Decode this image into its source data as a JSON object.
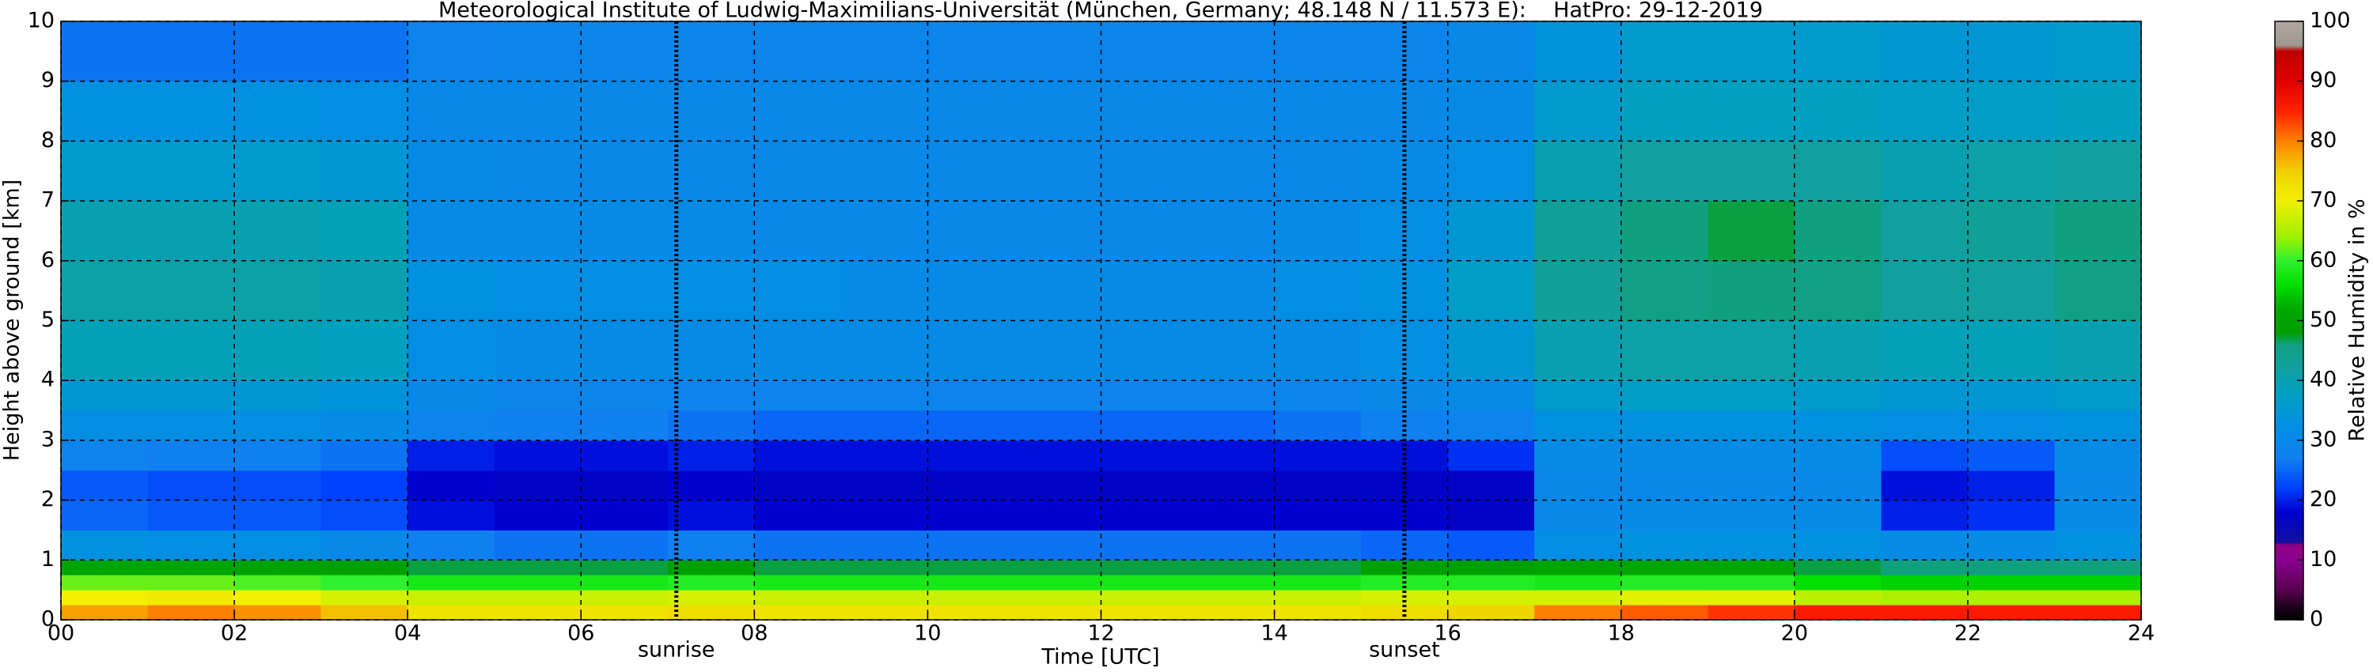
{
  "chart_data": {
    "type": "heatmap",
    "title": "Meteorological Institute of Ludwig-Maximilians-Universität (München, Germany; 48.148 N / 11.573 E):    HatPro: 29-12-2019",
    "x_label": "Time [UTC]",
    "y_label": "Height above ground [km]",
    "colorbar_label": "Relative Humidity in %",
    "x_edges": [
      0,
      1,
      2,
      3,
      4,
      5,
      6,
      7,
      8,
      9,
      10,
      11,
      12,
      13,
      14,
      15,
      16,
      17,
      18,
      19,
      20,
      21,
      22,
      23,
      24
    ],
    "y_edges": [
      0,
      0.25,
      0.5,
      0.75,
      1,
      1.5,
      2,
      2.5,
      3,
      3.5,
      4,
      5,
      6,
      7,
      8,
      9,
      10
    ],
    "values": [
      [
        78,
        80,
        79,
        76,
        72,
        72,
        72,
        73,
        72,
        72,
        72,
        72,
        72,
        72,
        72,
        73,
        74,
        80,
        82,
        84,
        86,
        86,
        86,
        86
      ],
      [
        70,
        71,
        70,
        68,
        67,
        67,
        67,
        68,
        67,
        67,
        67,
        67,
        67,
        67,
        67,
        68,
        68,
        68,
        69,
        69,
        66,
        65,
        65,
        65
      ],
      [
        62,
        62,
        61,
        60,
        58,
        58,
        58,
        59,
        58,
        58,
        58,
        58,
        58,
        58,
        58,
        59,
        59,
        58,
        59,
        59,
        56,
        55,
        55,
        55
      ],
      [
        50,
        50,
        49,
        48,
        47,
        47,
        47,
        48,
        47,
        47,
        47,
        47,
        47,
        47,
        47,
        48,
        48,
        50,
        51,
        51,
        47,
        46,
        46,
        46
      ],
      [
        33,
        32,
        32,
        30,
        27,
        26,
        26,
        27,
        26,
        26,
        26,
        26,
        26,
        26,
        26,
        25,
        24,
        32,
        33,
        33,
        33,
        31,
        31,
        33
      ],
      [
        25,
        24,
        24,
        23,
        19,
        18,
        18,
        19,
        18,
        18,
        18,
        18,
        18,
        18,
        18,
        18,
        17,
        30,
        31,
        31,
        31,
        20,
        21,
        31
      ],
      [
        24,
        23,
        23,
        22,
        18,
        17,
        17,
        18,
        17,
        17,
        17,
        17,
        17,
        17,
        17,
        17,
        17,
        30,
        30,
        30,
        30,
        19,
        20,
        30
      ],
      [
        28,
        27,
        27,
        26,
        20,
        19,
        19,
        20,
        19,
        19,
        19,
        19,
        19,
        19,
        19,
        19,
        21,
        31,
        31,
        31,
        31,
        23,
        24,
        31
      ],
      [
        32,
        32,
        32,
        31,
        28,
        27,
        27,
        26,
        25,
        25,
        25,
        25,
        25,
        25,
        26,
        27,
        28,
        33,
        33,
        33,
        33,
        32,
        32,
        33
      ],
      [
        35,
        35,
        35,
        34,
        30,
        29,
        29,
        28,
        28,
        28,
        28,
        28,
        28,
        28,
        29,
        30,
        31,
        36,
        37,
        37,
        36,
        35,
        35,
        36
      ],
      [
        39,
        39,
        39,
        38,
        32,
        31,
        31,
        31,
        31,
        31,
        31,
        31,
        31,
        31,
        31,
        32,
        35,
        40,
        41,
        41,
        40,
        39,
        39,
        40
      ],
      [
        41,
        41,
        41,
        40,
        33,
        32,
        32,
        32,
        32,
        31,
        31,
        31,
        31,
        31,
        32,
        33,
        37,
        43,
        45,
        46,
        45,
        42,
        42,
        45
      ],
      [
        40,
        40,
        40,
        39,
        31,
        31,
        31,
        31,
        30,
        30,
        30,
        30,
        30,
        30,
        31,
        32,
        35,
        43,
        46,
        47,
        46,
        42,
        43,
        46
      ],
      [
        36,
        36,
        36,
        35,
        31,
        30,
        30,
        30,
        30,
        30,
        30,
        30,
        30,
        30,
        30,
        31,
        32,
        40,
        42,
        42,
        42,
        40,
        41,
        42
      ],
      [
        33,
        33,
        33,
        32,
        30,
        30,
        30,
        30,
        30,
        30,
        30,
        30,
        30,
        30,
        30,
        30,
        31,
        36,
        38,
        38,
        38,
        37,
        37,
        38
      ],
      [
        26,
        26,
        26,
        26,
        28,
        29,
        29,
        29,
        29,
        29,
        29,
        29,
        29,
        29,
        29,
        29,
        30,
        34,
        36,
        36,
        36,
        35,
        35,
        36
      ]
    ],
    "xlim": [
      0,
      24
    ],
    "ylim": [
      0,
      10
    ],
    "xticks": [
      {
        "value": 0,
        "label": "00"
      },
      {
        "value": 2,
        "label": "02"
      },
      {
        "value": 4,
        "label": "04"
      },
      {
        "value": 6,
        "label": "06"
      },
      {
        "value": 8,
        "label": "08"
      },
      {
        "value": 10,
        "label": "10"
      },
      {
        "value": 12,
        "label": "12"
      },
      {
        "value": 14,
        "label": "14"
      },
      {
        "value": 16,
        "label": "16"
      },
      {
        "value": 18,
        "label": "18"
      },
      {
        "value": 20,
        "label": "20"
      },
      {
        "value": 22,
        "label": "22"
      },
      {
        "value": 24,
        "label": "24"
      }
    ],
    "yticks": [
      0,
      1,
      2,
      3,
      4,
      5,
      6,
      7,
      8,
      9,
      10
    ],
    "clim": [
      0,
      100
    ],
    "cticks": [
      0,
      10,
      20,
      30,
      40,
      50,
      60,
      70,
      80,
      90,
      100
    ],
    "grid": true,
    "annotations": [
      {
        "text": "sunrise",
        "x": 7.1
      },
      {
        "text": "sunset",
        "x": 15.5
      }
    ],
    "colorscale": [
      {
        "value": 0,
        "color": "#000000"
      },
      {
        "value": 2,
        "color": "#1a001a"
      },
      {
        "value": 5,
        "color": "#5a0050"
      },
      {
        "value": 10,
        "color": "#8a0090"
      },
      {
        "value": 12.5,
        "color": "#900080"
      },
      {
        "value": 13,
        "color": "#1010a0"
      },
      {
        "value": 18,
        "color": "#0000d0"
      },
      {
        "value": 22,
        "color": "#0040ff"
      },
      {
        "value": 27,
        "color": "#1080f0"
      },
      {
        "value": 33,
        "color": "#0090e0"
      },
      {
        "value": 38,
        "color": "#00a0c0"
      },
      {
        "value": 42,
        "color": "#10a0a0"
      },
      {
        "value": 46,
        "color": "#10a080"
      },
      {
        "value": 48,
        "color": "#00a000"
      },
      {
        "value": 52,
        "color": "#00a800"
      },
      {
        "value": 56,
        "color": "#00e000"
      },
      {
        "value": 60,
        "color": "#30f030"
      },
      {
        "value": 64,
        "color": "#a0f000"
      },
      {
        "value": 70,
        "color": "#f0f000"
      },
      {
        "value": 75,
        "color": "#f0d000"
      },
      {
        "value": 80,
        "color": "#ff8000"
      },
      {
        "value": 85,
        "color": "#ff2000"
      },
      {
        "value": 90,
        "color": "#e00000"
      },
      {
        "value": 95,
        "color": "#c00000"
      },
      {
        "value": 96,
        "color": "#a09890"
      },
      {
        "value": 100,
        "color": "#b0a8a0"
      }
    ]
  }
}
